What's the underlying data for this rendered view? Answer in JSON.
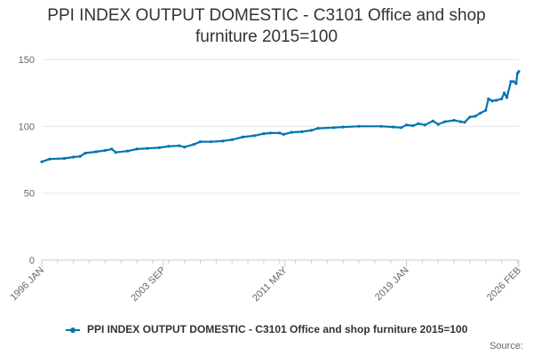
{
  "title_lines": [
    "PPI INDEX OUTPUT DOMESTIC - C3101 Office and shop",
    "furniture 2015=100"
  ],
  "legend_label": "PPI INDEX OUTPUT DOMESTIC - C3101 Office and shop furniture 2015=100",
  "source_label": "Source:",
  "colors": {
    "series": "#0074b3",
    "grid": "#e6e6e6",
    "axis": "#c0d0e0",
    "tick_text": "#666666"
  },
  "chart_data": {
    "type": "line",
    "title": "PPI INDEX OUTPUT DOMESTIC - C3101 Office and shop furniture 2015=100",
    "xlabel": "",
    "ylabel": "",
    "ylim": [
      0,
      150
    ],
    "yticks": [
      0,
      50,
      100,
      150
    ],
    "xticks": [
      "1996 JAN",
      "2003 SEP",
      "2011 MAY",
      "2019 JAN",
      "2026 FEB"
    ],
    "grid": true,
    "legend_position": "bottom",
    "series": [
      {
        "name": "PPI INDEX OUTPUT DOMESTIC - C3101 Office and shop furniture 2015=100",
        "points": [
          [
            "1996-01",
            73.5
          ],
          [
            "1996-07",
            75.5
          ],
          [
            "1997-06",
            76.0
          ],
          [
            "1998-01",
            77.0
          ],
          [
            "1998-06",
            77.5
          ],
          [
            "1998-10",
            80.0
          ],
          [
            "1999-06",
            81.0
          ],
          [
            "2000-01",
            82.0
          ],
          [
            "2000-06",
            83.0
          ],
          [
            "2000-09",
            80.5
          ],
          [
            "2001-06",
            81.5
          ],
          [
            "2002-01",
            83.0
          ],
          [
            "2002-09",
            83.5
          ],
          [
            "2003-06",
            84.0
          ],
          [
            "2004-01",
            85.0
          ],
          [
            "2004-09",
            85.5
          ],
          [
            "2005-01",
            84.5
          ],
          [
            "2005-08",
            86.5
          ],
          [
            "2006-01",
            88.5
          ],
          [
            "2006-09",
            88.5
          ],
          [
            "2007-06",
            89.0
          ],
          [
            "2008-01",
            90.0
          ],
          [
            "2008-09",
            92.0
          ],
          [
            "2009-06",
            93.0
          ],
          [
            "2010-01",
            94.5
          ],
          [
            "2010-06",
            95.0
          ],
          [
            "2011-01",
            95.0
          ],
          [
            "2011-04",
            94.0
          ],
          [
            "2011-10",
            95.5
          ],
          [
            "2012-06",
            96.0
          ],
          [
            "2013-01",
            97.0
          ],
          [
            "2013-06",
            98.5
          ],
          [
            "2014-06",
            99.0
          ],
          [
            "2015-01",
            99.5
          ],
          [
            "2016-01",
            100.0
          ],
          [
            "2017-06",
            100.0
          ],
          [
            "2018-03",
            99.5
          ],
          [
            "2018-09",
            99.0
          ],
          [
            "2019-01",
            101.0
          ],
          [
            "2019-06",
            100.5
          ],
          [
            "2019-10",
            102.0
          ],
          [
            "2020-03",
            101.0
          ],
          [
            "2020-09",
            104.0
          ],
          [
            "2021-01",
            101.5
          ],
          [
            "2021-06",
            103.5
          ],
          [
            "2022-01",
            104.5
          ],
          [
            "2022-06",
            103.5
          ],
          [
            "2022-09",
            103.0
          ],
          [
            "2023-01",
            107.0
          ],
          [
            "2023-05",
            107.5
          ],
          [
            "2023-09",
            110.0
          ],
          [
            "2024-01",
            112.0
          ],
          [
            "2024-03",
            120.5
          ],
          [
            "2024-06",
            119.0
          ],
          [
            "2024-09",
            119.5
          ],
          [
            "2025-01",
            120.5
          ],
          [
            "2025-03",
            125.0
          ],
          [
            "2025-05",
            121.5
          ],
          [
            "2025-08",
            133.5
          ],
          [
            "2025-10",
            133.5
          ],
          [
            "2025-12",
            132.0
          ],
          [
            "2026-01",
            139.5
          ],
          [
            "2026-02",
            141.0
          ]
        ]
      }
    ]
  }
}
